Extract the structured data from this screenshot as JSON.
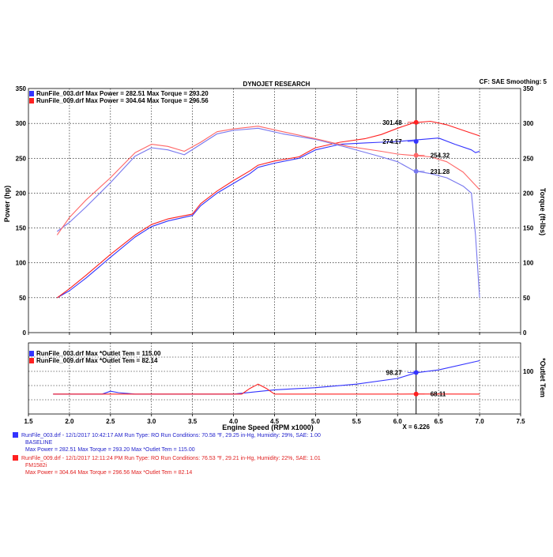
{
  "header": {
    "title": "DYNOJET RESEARCH",
    "settings": "CF: SAE  Smoothing: 5"
  },
  "colors": {
    "run1": "#3333ff",
    "run2": "#ff2020",
    "run1_light": "#7777ee",
    "run2_light": "#ff6666",
    "cursor": "#000000"
  },
  "chart_data": [
    {
      "type": "line",
      "title": "",
      "xlabel": "",
      "ylabel": "Power (hp)",
      "y2label": "Torque (ft-lbs)",
      "xlim": [
        1.5,
        7.5
      ],
      "ylim": [
        0,
        350
      ],
      "y2lim": [
        0,
        350
      ],
      "xticks": [
        "",
        "",
        "",
        "",
        "",
        "",
        "",
        "",
        "",
        "",
        "",
        "",
        ""
      ],
      "yticks": [
        "0",
        "50",
        "100",
        "150",
        "200",
        "250",
        "300",
        "350"
      ],
      "y2ticks": [
        "0",
        "50",
        "100",
        "150",
        "200",
        "250",
        "300",
        "350"
      ],
      "grid": true,
      "legend": [
        "RunFile_003.drf Max Power = 282.51   Max Torque = 293.20",
        "RunFile_009.drf Max Power = 304.64   Max Torque = 296.56"
      ],
      "cursor": {
        "x": 6.226
      },
      "annotations": [
        {
          "text": "301.48",
          "x": 6.226,
          "y": 301.48,
          "series": "run2-power"
        },
        {
          "text": "274.17",
          "x": 6.226,
          "y": 274.17,
          "series": "run1-power"
        },
        {
          "text": "254.32",
          "x": 6.226,
          "y": 254.32,
          "series": "run2-torque"
        },
        {
          "text": "231.28",
          "x": 6.226,
          "y": 231.28,
          "series": "run1-torque"
        }
      ],
      "series": [
        {
          "name": "RunFile_003.drf",
          "kind": "power",
          "run": "run1",
          "x": [
            1.85,
            2.0,
            2.2,
            2.5,
            2.8,
            3.0,
            3.2,
            3.5,
            3.6,
            3.8,
            4.0,
            4.2,
            4.3,
            4.5,
            4.8,
            5.0,
            5.3,
            5.6,
            5.8,
            6.0,
            6.2,
            6.4,
            6.5,
            6.7,
            6.9,
            6.95,
            7.0
          ],
          "y": [
            50,
            60,
            78,
            108,
            137,
            152,
            160,
            168,
            182,
            200,
            214,
            228,
            237,
            243,
            250,
            262,
            270,
            272,
            273,
            274,
            276,
            278,
            279,
            270,
            262,
            258,
            260
          ]
        },
        {
          "name": "RunFile_009.drf",
          "kind": "power",
          "run": "run2",
          "x": [
            1.85,
            2.0,
            2.2,
            2.5,
            2.8,
            3.0,
            3.2,
            3.5,
            3.6,
            3.8,
            4.0,
            4.2,
            4.3,
            4.5,
            4.8,
            5.0,
            5.3,
            5.6,
            5.8,
            6.0,
            6.2,
            6.4,
            6.6,
            6.8,
            7.0
          ],
          "y": [
            50,
            63,
            82,
            112,
            140,
            155,
            163,
            170,
            185,
            203,
            218,
            232,
            240,
            246,
            252,
            265,
            273,
            278,
            284,
            293,
            301,
            303,
            298,
            290,
            282
          ]
        },
        {
          "name": "RunFile_003.drf",
          "kind": "torque",
          "run": "run1",
          "x": [
            1.85,
            2.0,
            2.2,
            2.5,
            2.8,
            3.0,
            3.2,
            3.4,
            3.6,
            3.8,
            4.0,
            4.3,
            4.6,
            5.0,
            5.4,
            5.8,
            6.0,
            6.2,
            6.4,
            6.6,
            6.8,
            6.9,
            6.95,
            7.0
          ],
          "y": [
            145,
            158,
            180,
            215,
            253,
            265,
            262,
            255,
            270,
            285,
            290,
            293,
            285,
            277,
            265,
            252,
            245,
            232,
            228,
            222,
            210,
            200,
            140,
            50
          ]
        },
        {
          "name": "RunFile_009.drf",
          "kind": "torque",
          "run": "run2",
          "x": [
            1.85,
            2.0,
            2.2,
            2.5,
            2.8,
            3.0,
            3.2,
            3.4,
            3.6,
            3.8,
            4.0,
            4.3,
            4.6,
            5.0,
            5.4,
            5.8,
            6.0,
            6.2,
            6.4,
            6.6,
            6.8,
            7.0
          ],
          "y": [
            140,
            165,
            190,
            222,
            258,
            270,
            267,
            260,
            273,
            288,
            292,
            296,
            288,
            278,
            267,
            260,
            256,
            254,
            252,
            245,
            230,
            205
          ]
        }
      ]
    },
    {
      "type": "line",
      "title": "",
      "xlabel": "Engine Speed (RPM x1000)",
      "ylabel": "",
      "y2label": "*Outlet Tem",
      "xlim": [
        1.5,
        7.5
      ],
      "ylim": [
        40,
        140
      ],
      "xticks": [
        "1.5",
        "2.0",
        "2.5",
        "3.0",
        "3.5",
        "4.0",
        "4.5",
        "5.0",
        "5.5",
        "6.0",
        "6.5",
        "7.0",
        "7.5"
      ],
      "y2ticks": [
        "100"
      ],
      "grid": true,
      "legend": [
        "RunFile_003.drf Max *Outlet Tem = 115.00",
        "RunFile_009.drf Max *Outlet Tem = 82.14"
      ],
      "cursor": {
        "x": 6.226,
        "label": "X = 6.226"
      },
      "annotations": [
        {
          "text": "98.27",
          "x": 6.226,
          "y": 98.27,
          "series": "run1-outlet"
        },
        {
          "text": "68.11",
          "x": 6.226,
          "y": 68.11,
          "series": "run2-outlet"
        }
      ],
      "series": [
        {
          "name": "RunFile_003.drf",
          "kind": "outlet",
          "run": "run1",
          "x": [
            1.8,
            2.4,
            2.5,
            2.6,
            2.8,
            3.5,
            4.0,
            4.5,
            5.0,
            5.5,
            6.0,
            6.226,
            6.5,
            7.0
          ],
          "y": [
            68,
            68,
            72,
            70,
            68,
            68,
            68,
            74,
            77,
            82,
            90,
            98,
            102,
            115
          ]
        },
        {
          "name": "RunFile_009.drf",
          "kind": "outlet",
          "run": "run2",
          "x": [
            1.8,
            3.0,
            4.1,
            4.2,
            4.3,
            4.4,
            4.5,
            5.0,
            6.0,
            6.226,
            7.0
          ],
          "y": [
            68,
            68,
            68,
            76,
            82,
            76,
            68,
            68,
            68,
            68.11,
            68
          ]
        }
      ]
    }
  ],
  "footer": {
    "run1_line1": "RunFile_003.drf - 12/1/2017 10:42:17 AM  Run Type: RO  Run Conditions: 70.58 ℉, 29.25 in-Hg,  Humidity:  29%, SAE: 1.00",
    "run1_line2": "BASELINE",
    "run1_line3": "Max Power = 282.51   Max Torque = 293.20  Max *Outlet Tem = 115.00",
    "run2_line1": "RunFile_009.drf - 12/1/2017 12:11:24 PM  Run Type: RO  Run Conditions: 76.53 ℉, 29.21 in-Hg,  Humidity:  22%, SAE: 1.01",
    "run2_line2": "FM1582i",
    "run2_line3": "Max Power = 304.64   Max Torque = 296.56  Max *Outlet Tem = 82.14"
  }
}
